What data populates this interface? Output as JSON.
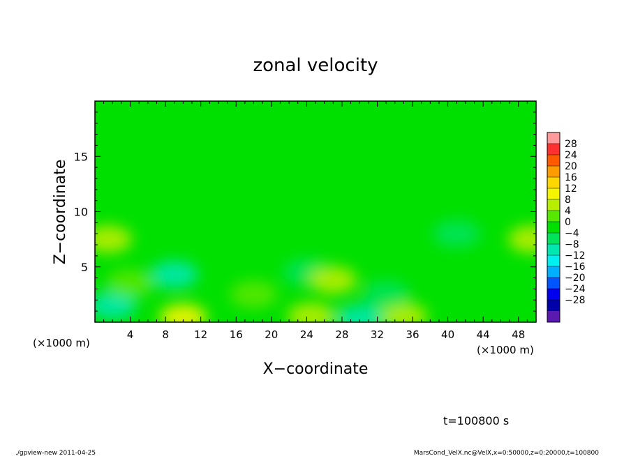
{
  "chart_data": {
    "type": "heatmap",
    "title": "zonal velocity",
    "xlabel": "X−coordinate",
    "ylabel": "Z−coordinate",
    "x_unit_left": "(×1000 m)",
    "x_unit_right": "(×1000 m)",
    "xlim": [
      0,
      50
    ],
    "ylim": [
      0,
      20
    ],
    "x_ticks": [
      4,
      8,
      12,
      16,
      20,
      24,
      28,
      32,
      36,
      40,
      44,
      48
    ],
    "y_ticks": [
      5,
      10,
      15
    ],
    "colorbar": {
      "levels": [
        "28",
        "24",
        "20",
        "16",
        "12",
        "8",
        "4",
        "0",
        "−4",
        "−8",
        "−12",
        "−16",
        "−20",
        "−24",
        "−28"
      ],
      "colors": [
        "#ff9a9a",
        "#ff3030",
        "#ff5a00",
        "#ff9d00",
        "#ffd700",
        "#f5f500",
        "#b8ee00",
        "#56e800",
        "#00e000",
        "#00e35a",
        "#00e8b0",
        "#00f0f0",
        "#00b0ff",
        "#0055ff",
        "#0000ee",
        "#0000a8",
        "#5a1ab0"
      ]
    },
    "features": [
      {
        "x": 9,
        "z": 4.3,
        "value": -9
      },
      {
        "x": 24,
        "z": 4.5,
        "value": -7
      },
      {
        "x": 41,
        "z": 8,
        "value": -5
      },
      {
        "x": 2,
        "z": 1.5,
        "value": -8
      },
      {
        "x": 1.5,
        "z": 7.5,
        "value": 7
      },
      {
        "x": 49.5,
        "z": 7.5,
        "value": 6
      },
      {
        "x": 10,
        "z": 0.4,
        "value": 10
      },
      {
        "x": 24.5,
        "z": 0.5,
        "value": 8
      },
      {
        "x": 35,
        "z": 0.5,
        "value": 8
      },
      {
        "x": 27,
        "z": 3.8,
        "value": 5
      },
      {
        "x": 4,
        "z": 3.5,
        "value": 3
      },
      {
        "x": 30,
        "z": 0.3,
        "value": -10
      },
      {
        "x": 33,
        "z": 2.5,
        "value": -6
      },
      {
        "x": 18,
        "z": 2.5,
        "value": 4
      }
    ]
  },
  "annotations": {
    "time": "t=100800 s",
    "footer_left": "./gpview-new  2011-04-25",
    "footer_right": "MarsCond_VelX.nc@VelX,x=0:50000,z=0:20000,t=100800"
  }
}
